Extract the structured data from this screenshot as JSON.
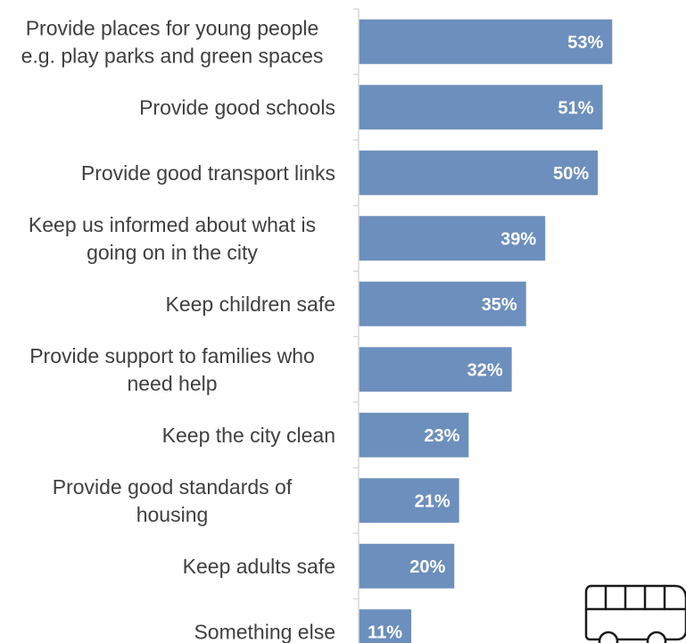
{
  "chart_data": {
    "type": "bar",
    "orientation": "horizontal",
    "categories": [
      [
        "Provide places for young people",
        "e.g. play parks and green spaces"
      ],
      [
        "Provide good schools"
      ],
      [
        "Provide good transport links"
      ],
      [
        "Keep us informed about what is",
        "going on in the city"
      ],
      [
        "Keep children safe"
      ],
      [
        "Provide support to families who",
        "need help"
      ],
      [
        "Keep the city clean"
      ],
      [
        "Provide good standards of",
        "housing"
      ],
      [
        "Keep adults safe"
      ],
      [
        "Something else"
      ]
    ],
    "values": [
      53,
      51,
      50,
      39,
      35,
      32,
      23,
      21,
      20,
      11
    ],
    "value_labels": [
      "53%",
      "51%",
      "50%",
      "39%",
      "35%",
      "32%",
      "23%",
      "21%",
      "20%",
      "11%"
    ],
    "bar_color": "#6d8fbd",
    "xlim": [
      0,
      55
    ],
    "grid": false,
    "legend": "none"
  },
  "icon": {
    "name": "bus-icon",
    "color": "#1a1a1a"
  }
}
